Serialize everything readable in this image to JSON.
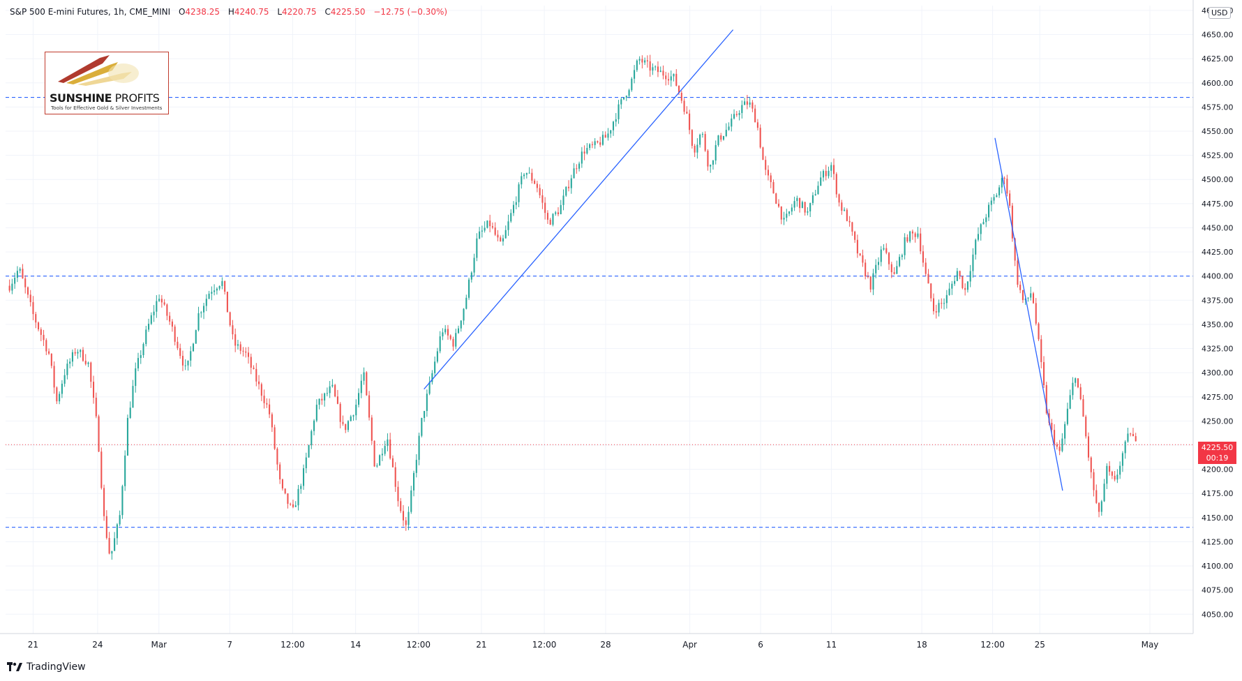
{
  "header": {
    "symbol": "S&P 500 E-mini Futures, 1h, CME_MINI",
    "open_label": "O",
    "open": "4238.25",
    "high_label": "H",
    "high": "4240.75",
    "low_label": "L",
    "low": "4220.75",
    "close_label": "C",
    "close": "4225.50",
    "change": "−12.75 (−0.30%)"
  },
  "logo": {
    "brand_bold": "SUNSHINE",
    "brand_light": " PROFITS",
    "tagline": "Tools for Effective Gold & Silver Investments"
  },
  "price_axis": {
    "currency": "USD",
    "last_price": "4225.50",
    "countdown": "00:19"
  },
  "footer": {
    "brand": "TradingView"
  },
  "colors": {
    "up": "#26a69a",
    "down": "#ef5350",
    "trendline": "#2962ff",
    "level": "#2962ff",
    "last_price_line": "#f23645",
    "grid": "#f0f3fa"
  },
  "chart_data": {
    "type": "candlestick",
    "title": "S&P 500 E-mini Futures, 1h, CME_MINI",
    "ylim": [
      4030,
      4680
    ],
    "y_ticks": [
      "4050.00",
      "4075.00",
      "4100.00",
      "4125.00",
      "4150.00",
      "4175.00",
      "4200.00",
      "4225.00",
      "4250.00",
      "4275.00",
      "4300.00",
      "4325.00",
      "4350.00",
      "4375.00",
      "4400.00",
      "4425.00",
      "4450.00",
      "4475.00",
      "4500.00",
      "4525.00",
      "4550.00",
      "4575.00",
      "4600.00",
      "4625.00",
      "4650.00",
      "4675.00"
    ],
    "x_ticks": [
      {
        "label": "21",
        "t": 0.03
      },
      {
        "label": "24",
        "t": 0.112
      },
      {
        "label": "Mar",
        "t": 0.19
      },
      {
        "label": "7",
        "t": 0.28
      },
      {
        "label": "12:00",
        "t": 0.36
      },
      {
        "label": "14",
        "t": 0.44
      },
      {
        "label": "12:00",
        "t": 0.52
      },
      {
        "label": "21",
        "t": 0.6
      },
      {
        "label": "12:00",
        "t": 0.68
      },
      {
        "label": "28",
        "t": 0.758
      },
      {
        "label": "Apr",
        "t": 0.865
      },
      {
        "label": "6",
        "t": 0.955
      },
      {
        "label": "11",
        "t": 1.045
      },
      {
        "label": "18",
        "t": 1.16
      },
      {
        "label": "12:00",
        "t": 1.25
      },
      {
        "label": "25",
        "t": 1.31
      },
      {
        "label": "May",
        "t": 1.45
      }
    ],
    "horizontal_levels": [
      4585,
      4400,
      4140
    ],
    "last_price": 4225.5,
    "trendlines": [
      {
        "from": [
          0.527,
          4283
        ],
        "to": [
          0.92,
          4655
        ]
      },
      {
        "from": [
          1.253,
          4543
        ],
        "to": [
          1.339,
          4178
        ]
      }
    ],
    "path_keypoints": [
      [
        0.0,
        4390
      ],
      [
        0.012,
        4408
      ],
      [
        0.03,
        4360
      ],
      [
        0.05,
        4320
      ],
      [
        0.06,
        4270
      ],
      [
        0.07,
        4300
      ],
      [
        0.085,
        4325
      ],
      [
        0.1,
        4310
      ],
      [
        0.112,
        4240
      ],
      [
        0.12,
        4150
      ],
      [
        0.128,
        4108
      ],
      [
        0.14,
        4150
      ],
      [
        0.15,
        4250
      ],
      [
        0.16,
        4300
      ],
      [
        0.175,
        4345
      ],
      [
        0.19,
        4380
      ],
      [
        0.205,
        4350
      ],
      [
        0.225,
        4300
      ],
      [
        0.24,
        4360
      ],
      [
        0.255,
        4385
      ],
      [
        0.27,
        4395
      ],
      [
        0.285,
        4330
      ],
      [
        0.3,
        4320
      ],
      [
        0.315,
        4290
      ],
      [
        0.33,
        4260
      ],
      [
        0.345,
        4180
      ],
      [
        0.36,
        4155
      ],
      [
        0.375,
        4200
      ],
      [
        0.39,
        4265
      ],
      [
        0.41,
        4285
      ],
      [
        0.425,
        4240
      ],
      [
        0.44,
        4265
      ],
      [
        0.45,
        4300
      ],
      [
        0.465,
        4200
      ],
      [
        0.48,
        4235
      ],
      [
        0.495,
        4165
      ],
      [
        0.505,
        4138
      ],
      [
        0.515,
        4200
      ],
      [
        0.525,
        4255
      ],
      [
        0.535,
        4290
      ],
      [
        0.55,
        4345
      ],
      [
        0.565,
        4330
      ],
      [
        0.58,
        4375
      ],
      [
        0.595,
        4440
      ],
      [
        0.61,
        4455
      ],
      [
        0.625,
        4430
      ],
      [
        0.64,
        4470
      ],
      [
        0.655,
        4510
      ],
      [
        0.67,
        4495
      ],
      [
        0.685,
        4455
      ],
      [
        0.7,
        4470
      ],
      [
        0.715,
        4505
      ],
      [
        0.73,
        4530
      ],
      [
        0.745,
        4535
      ],
      [
        0.76,
        4545
      ],
      [
        0.775,
        4575
      ],
      [
        0.79,
        4600
      ],
      [
        0.8,
        4625
      ],
      [
        0.815,
        4615
      ],
      [
        0.83,
        4610
      ],
      [
        0.845,
        4605
      ],
      [
        0.86,
        4570
      ],
      [
        0.87,
        4530
      ],
      [
        0.88,
        4550
      ],
      [
        0.89,
        4510
      ],
      [
        0.9,
        4540
      ],
      [
        0.915,
        4555
      ],
      [
        0.93,
        4575
      ],
      [
        0.94,
        4580
      ],
      [
        0.95,
        4560
      ],
      [
        0.96,
        4510
      ],
      [
        0.97,
        4490
      ],
      [
        0.985,
        4455
      ],
      [
        1.0,
        4480
      ],
      [
        1.015,
        4465
      ],
      [
        1.03,
        4500
      ],
      [
        1.045,
        4515
      ],
      [
        1.055,
        4475
      ],
      [
        1.065,
        4460
      ],
      [
        1.08,
        4420
      ],
      [
        1.095,
        4390
      ],
      [
        1.11,
        4430
      ],
      [
        1.125,
        4400
      ],
      [
        1.14,
        4440
      ],
      [
        1.155,
        4445
      ],
      [
        1.165,
        4400
      ],
      [
        1.175,
        4365
      ],
      [
        1.19,
        4375
      ],
      [
        1.205,
        4405
      ],
      [
        1.215,
        4385
      ],
      [
        1.23,
        4440
      ],
      [
        1.245,
        4470
      ],
      [
        1.255,
        4485
      ],
      [
        1.265,
        4505
      ],
      [
        1.272,
        4470
      ],
      [
        1.28,
        4400
      ],
      [
        1.29,
        4370
      ],
      [
        1.3,
        4385
      ],
      [
        1.31,
        4320
      ],
      [
        1.32,
        4250
      ],
      [
        1.335,
        4215
      ],
      [
        1.345,
        4260
      ],
      [
        1.355,
        4300
      ],
      [
        1.365,
        4255
      ],
      [
        1.375,
        4195
      ],
      [
        1.385,
        4150
      ],
      [
        1.395,
        4200
      ],
      [
        1.405,
        4185
      ],
      [
        1.415,
        4215
      ],
      [
        1.425,
        4240
      ],
      [
        1.432,
        4225.5
      ]
    ],
    "x_range": [
      -0.005,
      1.505
    ]
  }
}
